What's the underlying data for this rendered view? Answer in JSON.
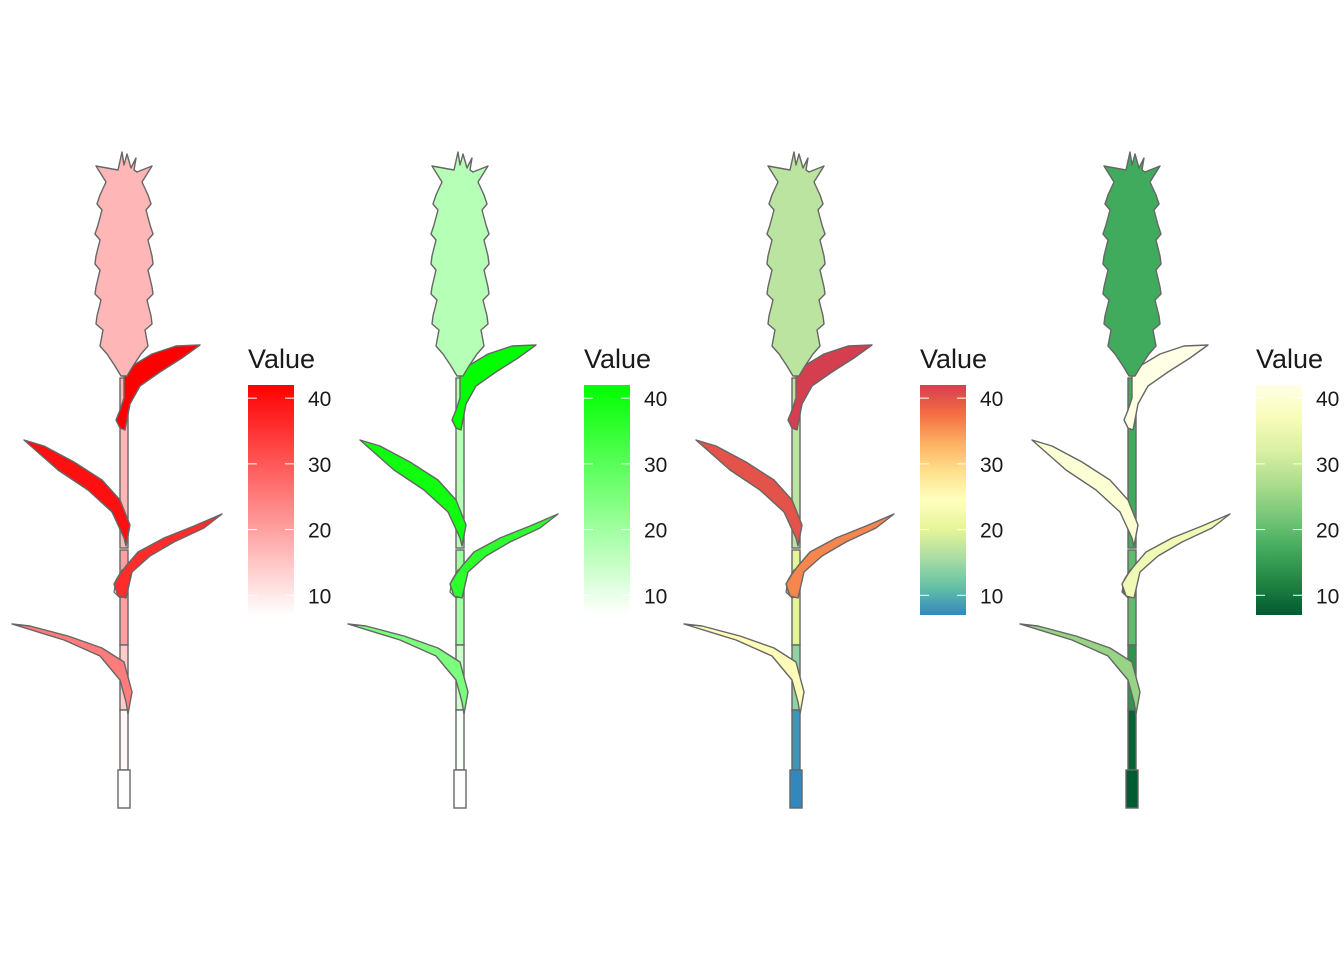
{
  "chart_data": [
    {
      "type": "heatmap",
      "legend": {
        "title": "Value",
        "ticks": [
          10,
          20,
          30,
          40
        ],
        "range": [
          7,
          42
        ],
        "placement": "right"
      },
      "palette": [
        "#ffffff",
        "#ff0000"
      ],
      "segments": {
        "spike": 17,
        "leaf_flag": 42,
        "leaf_2": 40,
        "leaf_3": 36,
        "leaf_4": 25,
        "sheath_1": 20,
        "sheath_2": 12,
        "stem_1": 17,
        "stem_2": 14,
        "stem_3": 8,
        "stem_4": 7,
        "stem_5": 7
      }
    },
    {
      "type": "heatmap",
      "legend": {
        "title": "Value",
        "ticks": [
          10,
          20,
          30,
          40
        ],
        "range": [
          7,
          42
        ],
        "placement": "right"
      },
      "palette": [
        "#ffffff",
        "#00ff00"
      ],
      "segments": {
        "spike": 17,
        "leaf_flag": 42,
        "leaf_2": 40,
        "leaf_3": 36,
        "leaf_4": 25,
        "sheath_1": 20,
        "sheath_2": 12,
        "stem_1": 17,
        "stem_2": 14,
        "stem_3": 8,
        "stem_4": 7,
        "stem_5": 7
      }
    },
    {
      "type": "heatmap",
      "legend": {
        "title": "Value",
        "ticks": [
          10,
          20,
          30,
          40
        ],
        "range": [
          7,
          42
        ],
        "placement": "right"
      },
      "palette": [
        "#3288bd",
        "#66c2a5",
        "#abdda4",
        "#e6f598",
        "#ffffbf",
        "#fee08b",
        "#fdae61",
        "#f46d43",
        "#d53e4f"
      ],
      "segments": {
        "spike": 17,
        "leaf_flag": 42,
        "leaf_2": 40,
        "leaf_3": 36,
        "leaf_4": 25,
        "sheath_1": 20,
        "sheath_2": 12,
        "stem_1": 17,
        "stem_2": 14,
        "stem_3": 8,
        "stem_4": 7,
        "stem_5": 7
      }
    },
    {
      "type": "heatmap",
      "legend": {
        "title": "Value",
        "ticks": [
          10,
          20,
          30,
          40
        ],
        "range": [
          7,
          42
        ],
        "placement": "right"
      },
      "palette": [
        "#005a32",
        "#238443",
        "#41ab5d",
        "#78c679",
        "#addd8e",
        "#d9f0a3",
        "#f7fcb9",
        "#ffffe5"
      ],
      "segments": {
        "spike": 17,
        "leaf_flag": 42,
        "leaf_2": 40,
        "leaf_3": 36,
        "leaf_4": 25,
        "sheath_1": 20,
        "sheath_2": 12,
        "stem_1": 17,
        "stem_2": 14,
        "stem_3": 8,
        "stem_4": 7,
        "stem_5": 7
      }
    }
  ]
}
